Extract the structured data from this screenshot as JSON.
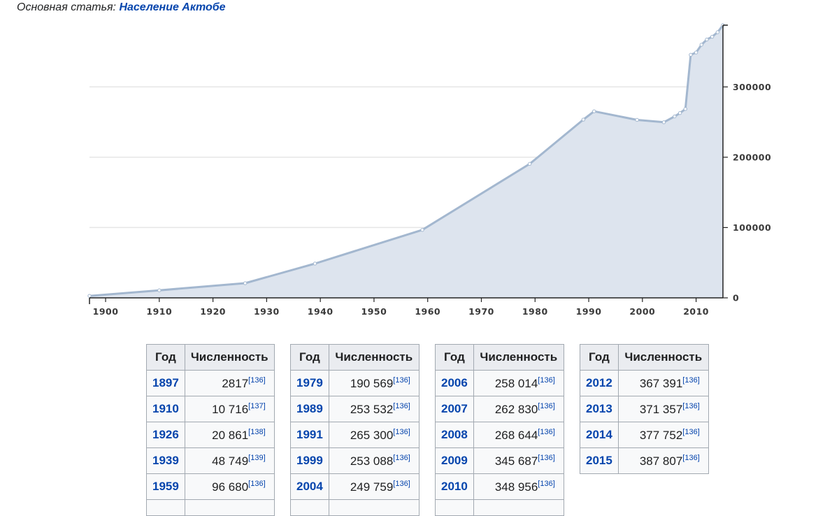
{
  "hatnote": {
    "prefix": "Основная статья:",
    "link": "Население Актобе"
  },
  "colors": {
    "area": "#dde4ee",
    "line": "#a3b7cf",
    "grid": "#e6e6e6",
    "link": "#0645ad"
  },
  "chart_data": {
    "type": "area",
    "title": "",
    "xlabel": "",
    "ylabel": "",
    "xlim": [
      1897,
      2015
    ],
    "ylim": [
      0,
      387807
    ],
    "grid": true,
    "y_axis_position": "right",
    "x_ticks": [
      1900,
      1910,
      1920,
      1930,
      1940,
      1950,
      1960,
      1970,
      1980,
      1990,
      2000,
      2010
    ],
    "y_ticks": [
      0,
      100000,
      200000,
      300000
    ],
    "series": [
      {
        "x": [
          1897,
          1910,
          1926,
          1939,
          1959,
          1979,
          1989,
          1991,
          1999,
          2004,
          2006,
          2007,
          2008,
          2009,
          2010,
          2011,
          2012,
          2013,
          2014,
          2015
        ],
        "values": [
          2817,
          10716,
          20861,
          48749,
          96680,
          190569,
          253532,
          265300,
          253088,
          249759,
          258014,
          262830,
          268644,
          345687,
          348956,
          360000,
          367391,
          371357,
          377752,
          387807
        ]
      }
    ]
  },
  "tables": [
    {
      "headers": [
        "Год",
        "Численность"
      ],
      "rows": [
        {
          "year": "1897",
          "value": "2817",
          "ref": "[136]"
        },
        {
          "year": "1910",
          "value": "10 716",
          "ref": "[137]"
        },
        {
          "year": "1926",
          "value": "20 861",
          "ref": "[138]"
        },
        {
          "year": "1939",
          "value": "48 749",
          "ref": "[139]"
        },
        {
          "year": "1959",
          "value": "96 680",
          "ref": "[136]"
        }
      ]
    },
    {
      "headers": [
        "Год",
        "Численность"
      ],
      "rows": [
        {
          "year": "1979",
          "value": "190 569",
          "ref": "[136]"
        },
        {
          "year": "1989",
          "value": "253 532",
          "ref": "[136]"
        },
        {
          "year": "1991",
          "value": "265 300",
          "ref": "[136]"
        },
        {
          "year": "1999",
          "value": "253 088",
          "ref": "[136]"
        },
        {
          "year": "2004",
          "value": "249 759",
          "ref": "[136]"
        }
      ]
    },
    {
      "headers": [
        "Год",
        "Численность"
      ],
      "rows": [
        {
          "year": "2006",
          "value": "258 014",
          "ref": "[136]"
        },
        {
          "year": "2007",
          "value": "262 830",
          "ref": "[136]"
        },
        {
          "year": "2008",
          "value": "268 644",
          "ref": "[136]"
        },
        {
          "year": "2009",
          "value": "345 687",
          "ref": "[136]"
        },
        {
          "year": "2010",
          "value": "348 956",
          "ref": "[136]"
        }
      ]
    },
    {
      "headers": [
        "Год",
        "Численность"
      ],
      "rows": [
        {
          "year": "2012",
          "value": "367 391",
          "ref": "[136]"
        },
        {
          "year": "2013",
          "value": "371 357",
          "ref": "[136]"
        },
        {
          "year": "2014",
          "value": "377 752",
          "ref": "[136]"
        },
        {
          "year": "2015",
          "value": "387 807",
          "ref": "[136]"
        }
      ]
    }
  ]
}
